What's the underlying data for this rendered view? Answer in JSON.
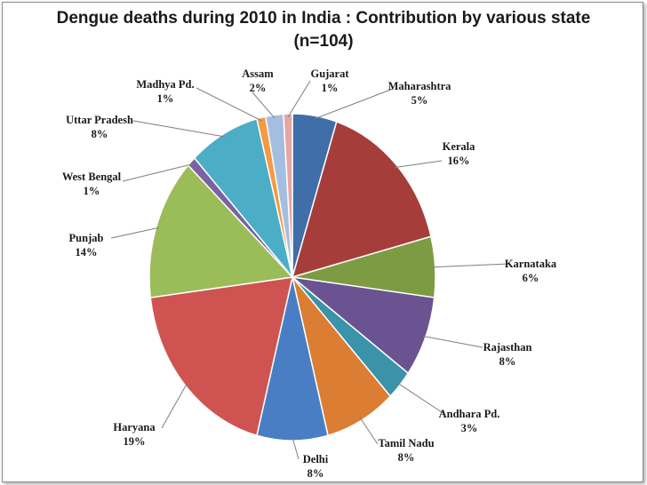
{
  "chart_data": {
    "type": "pie",
    "title": "Dengue deaths during 2010 in India : Contribution by various state",
    "subtitle": "(n=104)",
    "slices": [
      {
        "label": "Maharashtra",
        "value": 5,
        "value_label": "5%",
        "color": "#3f6ea8"
      },
      {
        "label": "Kerala",
        "value": 16,
        "value_label": "16%",
        "color": "#a53e3b"
      },
      {
        "label": "Karnataka",
        "value": 6,
        "value_label": "6%",
        "color": "#7d9b43"
      },
      {
        "label": "Rajasthan",
        "value": 8,
        "value_label": "8%",
        "color": "#6a5390"
      },
      {
        "label": "Andhara Pd.",
        "value": 3,
        "value_label": "3%",
        "color": "#3a93a8"
      },
      {
        "label": "Tamil Nadu",
        "value": 8,
        "value_label": "8%",
        "color": "#db7d33"
      },
      {
        "label": "Delhi",
        "value": 8,
        "value_label": "8%",
        "color": "#4a7ec4"
      },
      {
        "label": "Haryana",
        "value": 19,
        "value_label": "19%",
        "color": "#cf5350"
      },
      {
        "label": "Punjab",
        "value": 14,
        "value_label": "14%",
        "color": "#9bbd59"
      },
      {
        "label": "West Bengal",
        "value": 1,
        "value_label": "1%",
        "color": "#7a62a3"
      },
      {
        "label": "Uttar Pradesh",
        "value": 8,
        "value_label": "8%",
        "color": "#4badc6"
      },
      {
        "label": "Madhya Pd.",
        "value": 1,
        "value_label": "1%",
        "color": "#f59a43"
      },
      {
        "label": "Assam",
        "value": 2,
        "value_label": "2%",
        "color": "#a4bedf"
      },
      {
        "label": "Gujarat",
        "value": 1,
        "value_label": "1%",
        "color": "#e6a5a4"
      }
    ],
    "legend": "none",
    "data_labels": "outside with leader lines"
  }
}
